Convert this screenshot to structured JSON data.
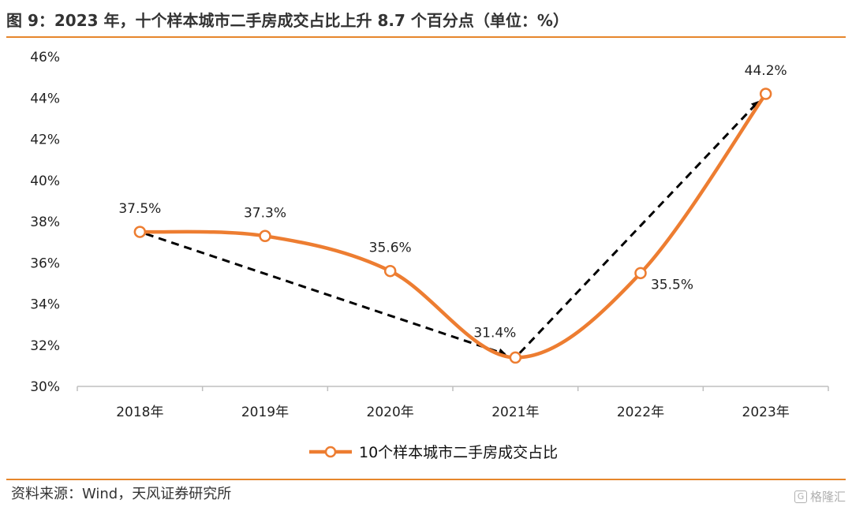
{
  "header": {
    "title": "图 9：2023 年，十个样本城市二手房成交占比上升 8.7 个百分点（单位：%）"
  },
  "footer": {
    "source": "资料来源：Wind，天风证券研究所",
    "watermark": "格隆汇"
  },
  "colors": {
    "accent": "#e6862b",
    "series": "#ed7d31",
    "arrow": "#000000",
    "axis": "#bfbfbf"
  },
  "chart_data": {
    "type": "line",
    "categories": [
      "2018年",
      "2019年",
      "2020年",
      "2021年",
      "2022年",
      "2023年"
    ],
    "series": [
      {
        "name": "10个样本城市二手房成交占比",
        "values": [
          37.5,
          37.3,
          35.6,
          31.4,
          35.5,
          44.2
        ]
      }
    ],
    "data_labels": [
      "37.5%",
      "37.3%",
      "35.6%",
      "31.4%",
      "35.5%",
      "44.2%"
    ],
    "y_ticks": [
      "30%",
      "32%",
      "34%",
      "36%",
      "38%",
      "40%",
      "42%",
      "44%",
      "46%"
    ],
    "ylim": [
      30,
      46
    ],
    "y_step": 2,
    "smooth": true,
    "grid": false,
    "legend": "bottom",
    "annotations": [
      {
        "type": "dashed-arrow",
        "from_category": "2018年",
        "to_category": "2021年"
      },
      {
        "type": "dashed-arrow",
        "from_category": "2021年",
        "to_category": "2023年"
      }
    ]
  }
}
